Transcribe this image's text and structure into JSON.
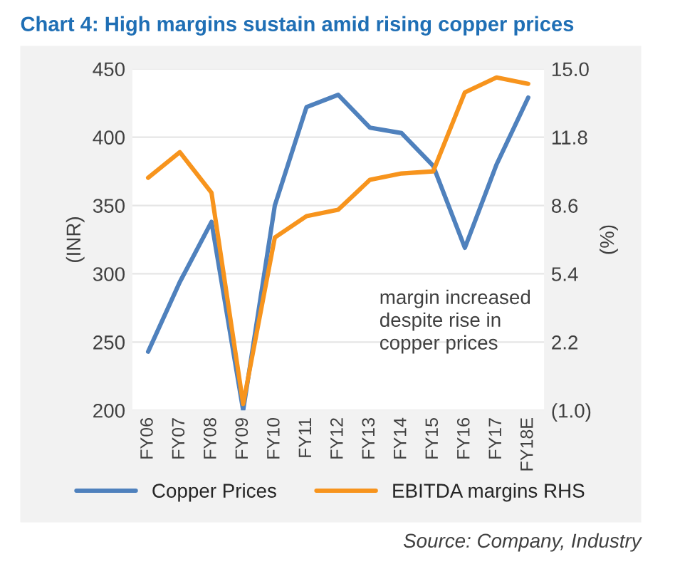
{
  "chart_data": {
    "type": "line",
    "title": "Chart 4: High margins sustain amid rising copper prices",
    "ylabel": "(INR)",
    "y2label": "(%)",
    "categories": [
      "FY06",
      "FY07",
      "FY08",
      "FY09",
      "FY10",
      "FY11",
      "FY12",
      "FY13",
      "FY14",
      "FY15",
      "FY16",
      "FY17",
      "FY18E"
    ],
    "series": [
      {
        "name": "Copper Prices",
        "color": "#4f81bd",
        "values": [
          243,
          294,
          338,
          200,
          350,
          422,
          431,
          407,
          403,
          379,
          319,
          380,
          429
        ]
      },
      {
        "name": "EBITDA margins RHS",
        "color": "#f7941d",
        "axis": "y2",
        "values": [
          9.9,
          11.1,
          9.2,
          -0.7,
          7.1,
          8.1,
          8.4,
          9.8,
          10.1,
          10.2,
          13.9,
          14.6,
          14.3
        ]
      }
    ],
    "ylim": [
      200,
      450
    ],
    "yticks": [
      200,
      250,
      300,
      350,
      400,
      450
    ],
    "y2lim": [
      -1.0,
      15.0
    ],
    "y2ticks": [
      {
        "value": -1.0,
        "label": "(1.0)"
      },
      {
        "value": 2.2,
        "label": "2.2"
      },
      {
        "value": 5.4,
        "label": "5.4"
      },
      {
        "value": 8.6,
        "label": "8.6"
      },
      {
        "value": 11.8,
        "label": "11.8"
      },
      {
        "value": 15.0,
        "label": "15.0"
      }
    ],
    "grid": "y",
    "legend": "bottom",
    "annotations": [
      "margin increased\ndespite rise in\ncopper prices",
      "Source: Company, Industry"
    ]
  }
}
